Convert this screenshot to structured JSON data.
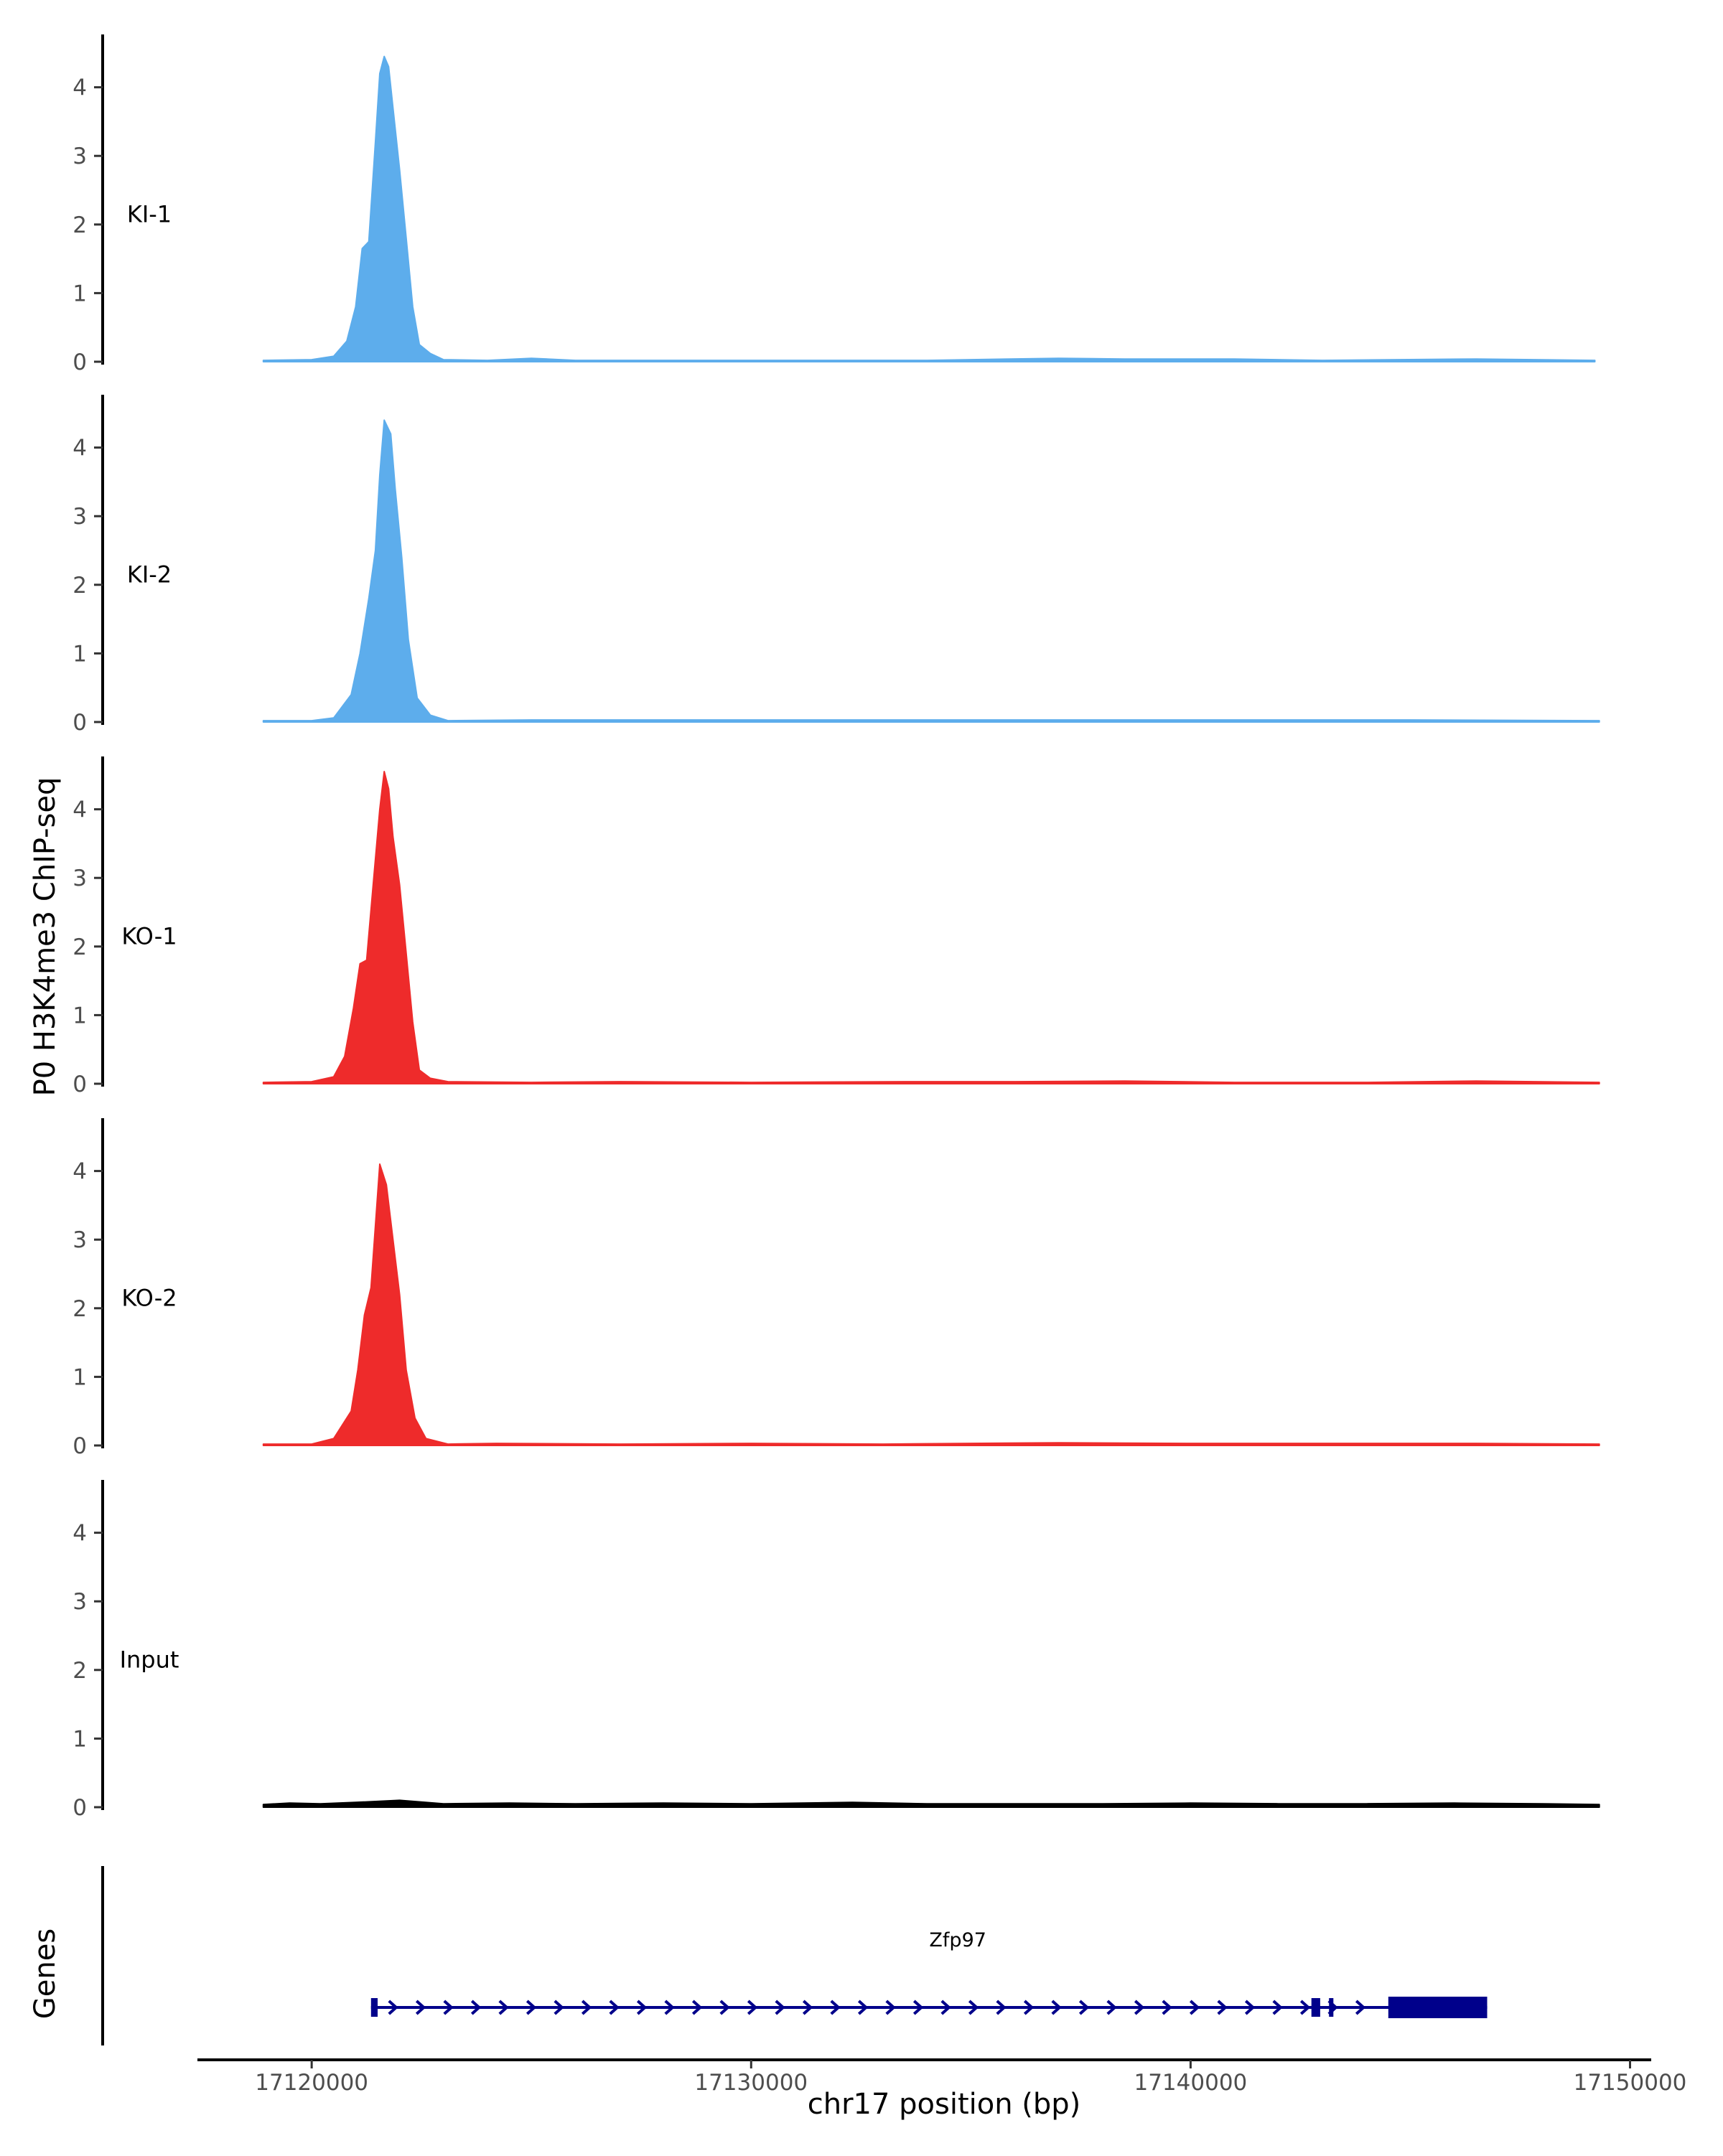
{
  "chart_data": {
    "type": "area",
    "ylabel": "P0 H3K4me3 ChIP-seq",
    "xlabel": "chr17 position (bp)",
    "gene_track_label": "Genes",
    "y_ticks": [
      "0",
      "1",
      "2",
      "3",
      "4"
    ],
    "ylim": [
      0,
      4.75
    ],
    "x_ticks": [
      {
        "value": 17120000,
        "label": "17120000"
      },
      {
        "value": 17130000,
        "label": "17130000"
      },
      {
        "value": 17140000,
        "label": "17140000"
      },
      {
        "value": 17150000,
        "label": "17150000"
      }
    ],
    "xlim": [
      17117400,
      17150400
    ],
    "tracks": [
      {
        "name": "KI-1",
        "color": "#5DADEC",
        "points": [
          [
            17118900,
            0.02
          ],
          [
            17120000,
            0.03
          ],
          [
            17120500,
            0.08
          ],
          [
            17120800,
            0.3
          ],
          [
            17121000,
            0.8
          ],
          [
            17121150,
            1.65
          ],
          [
            17121300,
            1.75
          ],
          [
            17121450,
            3.2
          ],
          [
            17121550,
            4.2
          ],
          [
            17121650,
            4.45
          ],
          [
            17121750,
            4.3
          ],
          [
            17121850,
            3.7
          ],
          [
            17122000,
            2.8
          ],
          [
            17122150,
            1.8
          ],
          [
            17122300,
            0.8
          ],
          [
            17122450,
            0.25
          ],
          [
            17122700,
            0.12
          ],
          [
            17123000,
            0.03
          ],
          [
            17124000,
            0.02
          ],
          [
            17125000,
            0.05
          ],
          [
            17126000,
            0.02
          ],
          [
            17128000,
            0.02
          ],
          [
            17130000,
            0.02
          ],
          [
            17132000,
            0.02
          ],
          [
            17134000,
            0.02
          ],
          [
            17137000,
            0.05
          ],
          [
            17138500,
            0.04
          ],
          [
            17141000,
            0.04
          ],
          [
            17143000,
            0.02
          ],
          [
            17146500,
            0.04
          ],
          [
            17149200,
            0.02
          ]
        ]
      },
      {
        "name": "KI-2",
        "color": "#5DADEC",
        "points": [
          [
            17118900,
            0.02
          ],
          [
            17120000,
            0.02
          ],
          [
            17120500,
            0.06
          ],
          [
            17120900,
            0.4
          ],
          [
            17121100,
            1.0
          ],
          [
            17121300,
            1.8
          ],
          [
            17121450,
            2.5
          ],
          [
            17121550,
            3.6
          ],
          [
            17121650,
            4.4
          ],
          [
            17121800,
            4.2
          ],
          [
            17121900,
            3.4
          ],
          [
            17122050,
            2.4
          ],
          [
            17122200,
            1.2
          ],
          [
            17122400,
            0.35
          ],
          [
            17122700,
            0.1
          ],
          [
            17123100,
            0.02
          ],
          [
            17125000,
            0.03
          ],
          [
            17128000,
            0.03
          ],
          [
            17131000,
            0.03
          ],
          [
            17134000,
            0.03
          ],
          [
            17137000,
            0.03
          ],
          [
            17141000,
            0.03
          ],
          [
            17145000,
            0.03
          ],
          [
            17149300,
            0.02
          ]
        ]
      },
      {
        "name": "KO-1",
        "color": "#EE2B2B",
        "points": [
          [
            17118900,
            0.02
          ],
          [
            17120000,
            0.03
          ],
          [
            17120500,
            0.1
          ],
          [
            17120750,
            0.4
          ],
          [
            17120950,
            1.1
          ],
          [
            17121100,
            1.75
          ],
          [
            17121250,
            1.8
          ],
          [
            17121400,
            2.9
          ],
          [
            17121550,
            4.0
          ],
          [
            17121650,
            4.55
          ],
          [
            17121750,
            4.3
          ],
          [
            17121850,
            3.6
          ],
          [
            17122000,
            2.9
          ],
          [
            17122150,
            1.9
          ],
          [
            17122300,
            0.9
          ],
          [
            17122450,
            0.2
          ],
          [
            17122700,
            0.08
          ],
          [
            17123100,
            0.03
          ],
          [
            17125000,
            0.02
          ],
          [
            17127000,
            0.03
          ],
          [
            17130000,
            0.02
          ],
          [
            17133500,
            0.03
          ],
          [
            17136000,
            0.03
          ],
          [
            17138500,
            0.04
          ],
          [
            17141000,
            0.02
          ],
          [
            17144000,
            0.02
          ],
          [
            17146500,
            0.04
          ],
          [
            17149300,
            0.02
          ]
        ]
      },
      {
        "name": "KO-2",
        "color": "#EE2B2B",
        "points": [
          [
            17118900,
            0.02
          ],
          [
            17120000,
            0.02
          ],
          [
            17120500,
            0.1
          ],
          [
            17120900,
            0.5
          ],
          [
            17121050,
            1.1
          ],
          [
            17121200,
            1.9
          ],
          [
            17121350,
            2.3
          ],
          [
            17121450,
            3.2
          ],
          [
            17121550,
            4.1
          ],
          [
            17121700,
            3.8
          ],
          [
            17121850,
            3.0
          ],
          [
            17122000,
            2.2
          ],
          [
            17122150,
            1.1
          ],
          [
            17122350,
            0.4
          ],
          [
            17122600,
            0.1
          ],
          [
            17123100,
            0.02
          ],
          [
            17124200,
            0.03
          ],
          [
            17127000,
            0.02
          ],
          [
            17130000,
            0.03
          ],
          [
            17133000,
            0.02
          ],
          [
            17137000,
            0.04
          ],
          [
            17140000,
            0.03
          ],
          [
            17143000,
            0.03
          ],
          [
            17146500,
            0.03
          ],
          [
            17149300,
            0.02
          ]
        ]
      },
      {
        "name": "Input",
        "color": "#000000",
        "points": [
          [
            17118900,
            0.04
          ],
          [
            17119500,
            0.06
          ],
          [
            17120200,
            0.05
          ],
          [
            17121000,
            0.07
          ],
          [
            17122000,
            0.1
          ],
          [
            17123000,
            0.05
          ],
          [
            17124500,
            0.06
          ],
          [
            17126000,
            0.05
          ],
          [
            17128000,
            0.06
          ],
          [
            17130000,
            0.05
          ],
          [
            17132300,
            0.07
          ],
          [
            17134000,
            0.05
          ],
          [
            17136000,
            0.05
          ],
          [
            17138000,
            0.05
          ],
          [
            17140000,
            0.06
          ],
          [
            17142000,
            0.05
          ],
          [
            17144000,
            0.05
          ],
          [
            17146000,
            0.06
          ],
          [
            17148000,
            0.05
          ],
          [
            17149300,
            0.04
          ]
        ]
      }
    ],
    "gene": {
      "name": "Zfp97",
      "color": "#00008B",
      "start": 17121350,
      "end": 17146750,
      "exons": [
        [
          17121350,
          17121500
        ],
        [
          17142750,
          17142950
        ],
        [
          17143150,
          17143250
        ],
        [
          17144500,
          17146750
        ]
      ],
      "wide_exon": [
        17144500,
        17146750
      ]
    }
  }
}
